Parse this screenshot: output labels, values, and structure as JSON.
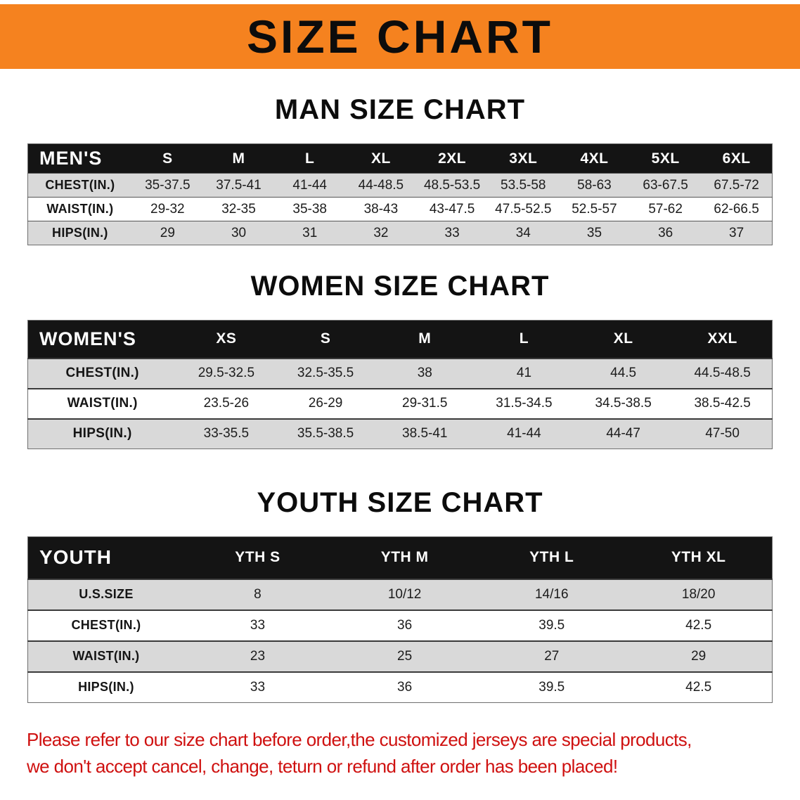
{
  "banner": {
    "title": "SIZE CHART",
    "background": "#f5821f",
    "text_color": "#0c0c0c"
  },
  "sections": [
    {
      "heading": "MAN SIZE CHART",
      "table": {
        "name": "mens",
        "header": [
          "MEN'S",
          "S",
          "M",
          "L",
          "XL",
          "2XL",
          "3XL",
          "4XL",
          "5XL",
          "6XL"
        ],
        "rows": [
          [
            "CHEST(IN.)",
            "35-37.5",
            "37.5-41",
            "41-44",
            "44-48.5",
            "48.5-53.5",
            "53.5-58",
            "58-63",
            "63-67.5",
            "67.5-72"
          ],
          [
            "WAIST(IN.)",
            "29-32",
            "32-35",
            "35-38",
            "38-43",
            "43-47.5",
            "47.5-52.5",
            "52.5-57",
            "57-62",
            "62-66.5"
          ],
          [
            "HIPS(IN.)",
            "29",
            "30",
            "31",
            "32",
            "33",
            "34",
            "35",
            "36",
            "37"
          ]
        ]
      }
    },
    {
      "heading": "WOMEN SIZE CHART",
      "table": {
        "name": "womens",
        "header": [
          "WOMEN'S",
          "XS",
          "S",
          "M",
          "L",
          "XL",
          "XXL"
        ],
        "rows": [
          [
            "CHEST(IN.)",
            "29.5-32.5",
            "32.5-35.5",
            "38",
            "41",
            "44.5",
            "44.5-48.5"
          ],
          [
            "WAIST(IN.)",
            "23.5-26",
            "26-29",
            "29-31.5",
            "31.5-34.5",
            "34.5-38.5",
            "38.5-42.5"
          ],
          [
            "HIPS(IN.)",
            "33-35.5",
            "35.5-38.5",
            "38.5-41",
            "41-44",
            "44-47",
            "47-50"
          ]
        ]
      }
    },
    {
      "heading": "YOUTH SIZE CHART",
      "table": {
        "name": "youth",
        "header": [
          "YOUTH",
          "YTH S",
          "YTH M",
          "YTH L",
          "YTH XL"
        ],
        "rows": [
          [
            "U.S.SIZE",
            "8",
            "10/12",
            "14/16",
            "18/20"
          ],
          [
            "CHEST(IN.)",
            "33",
            "36",
            "39.5",
            "42.5"
          ],
          [
            "WAIST(IN.)",
            "23",
            "25",
            "27",
            "29"
          ],
          [
            "HIPS(IN.)",
            "33",
            "36",
            "39.5",
            "42.5"
          ]
        ]
      }
    }
  ],
  "disclaimer": {
    "line1": "Please refer to our size chart before order,the customized jerseys are special products,",
    "line2": "we don't accept cancel, change, teturn or refund after order has been placed!",
    "color": "#cf1110"
  }
}
